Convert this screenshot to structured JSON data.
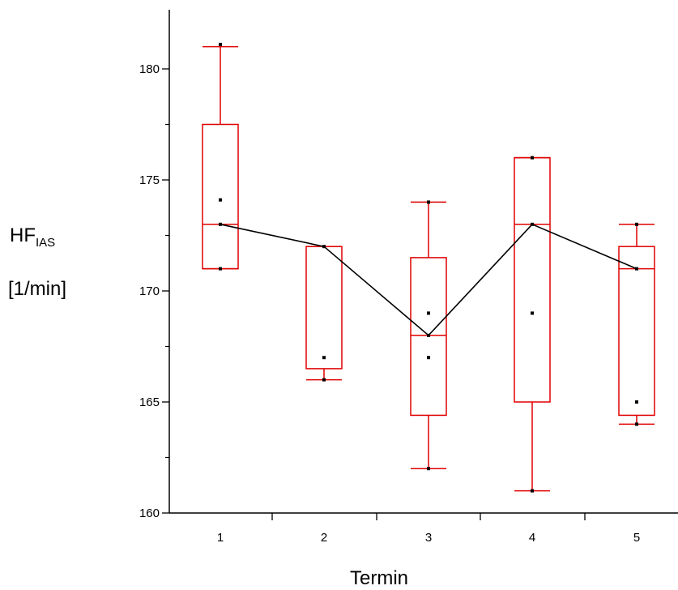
{
  "chart_data": {
    "type": "box",
    "xlabel": "Termin",
    "ylabel_main": "HF",
    "ylabel_sub": "IAS",
    "ylabel_unit": "[1/min]",
    "ylim": [
      160,
      182
    ],
    "yticks": [
      160,
      165,
      170,
      175,
      180
    ],
    "categories": [
      "1",
      "2",
      "3",
      "4",
      "5"
    ],
    "boxes": [
      {
        "category": "1",
        "whisker_low": 171,
        "q1": 171,
        "median": 173,
        "q3": 177.5,
        "whisker_high": 181,
        "points": [
          181.1,
          174.1,
          173,
          171
        ]
      },
      {
        "category": "2",
        "whisker_low": 166,
        "q1": 166.5,
        "median": 172,
        "q3": 172,
        "whisker_high": 172,
        "points": [
          172,
          167,
          166
        ]
      },
      {
        "category": "3",
        "whisker_low": 162,
        "q1": 164.4,
        "median": 168,
        "q3": 171.5,
        "whisker_high": 174,
        "points": [
          174,
          169,
          168,
          167,
          162
        ]
      },
      {
        "category": "4",
        "whisker_low": 161,
        "q1": 165,
        "median": 173,
        "q3": 176,
        "whisker_high": 176,
        "points": [
          176,
          173,
          169,
          161
        ]
      },
      {
        "category": "5",
        "whisker_low": 164,
        "q1": 164.4,
        "median": 171,
        "q3": 172,
        "whisker_high": 173,
        "points": [
          173,
          171,
          165,
          164
        ]
      }
    ],
    "median_line": [
      173,
      172,
      168,
      173,
      171
    ],
    "colors": {
      "box": "#e00000",
      "median_line": "#000000",
      "axis": "#000000",
      "points": "#000000"
    }
  }
}
